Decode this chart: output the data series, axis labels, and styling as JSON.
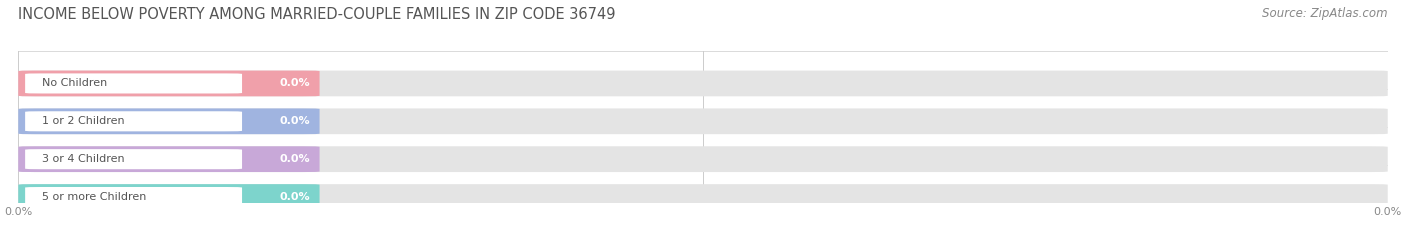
{
  "title": "INCOME BELOW POVERTY AMONG MARRIED-COUPLE FAMILIES IN ZIP CODE 36749",
  "source": "Source: ZipAtlas.com",
  "categories": [
    "No Children",
    "1 or 2 Children",
    "3 or 4 Children",
    "5 or more Children"
  ],
  "values": [
    0.0,
    0.0,
    0.0,
    0.0
  ],
  "bar_colors": [
    "#f0a0aa",
    "#a0b4e0",
    "#c8a8d8",
    "#7dd4cc"
  ],
  "bar_background": "#e4e4e4",
  "background_color": "#ffffff",
  "title_fontsize": 10.5,
  "source_fontsize": 8.5,
  "category_label_color": "#555555",
  "value_label_color": "#ffffff",
  "grid_color": "#cccccc",
  "xtick_color": "#888888"
}
